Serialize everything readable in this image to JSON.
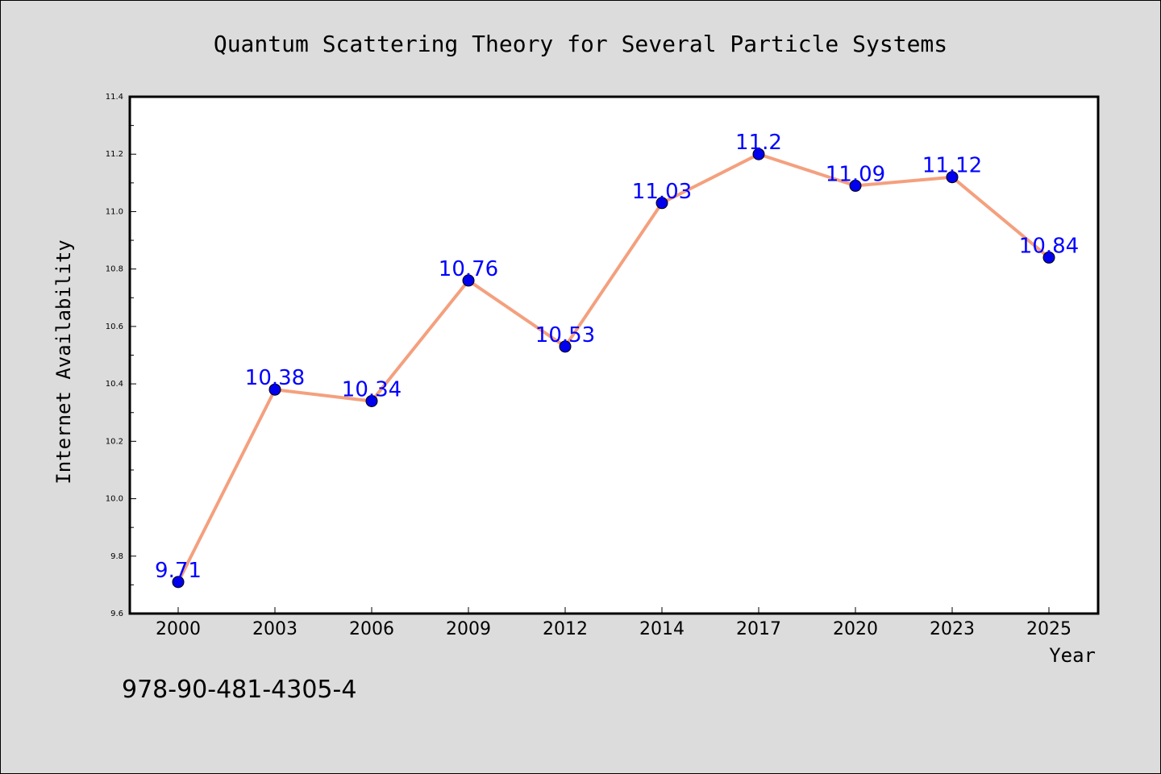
{
  "chart_data": {
    "type": "line",
    "title": "Quantum Scattering Theory for Several Particle Systems",
    "xlabel": "Year",
    "ylabel": "Internet Availability",
    "categories": [
      "2000",
      "2003",
      "2006",
      "2009",
      "2012",
      "2014",
      "2017",
      "2020",
      "2023",
      "2025"
    ],
    "values": [
      9.71,
      10.38,
      10.34,
      10.76,
      10.53,
      11.03,
      11.2,
      11.09,
      11.12,
      10.84
    ],
    "data_labels": [
      "9.71",
      "10.38",
      "10.34",
      "10.76",
      "10.53",
      "11.03",
      "11.2",
      "11.09",
      "11.12",
      "10.84"
    ],
    "ylim": [
      9.6,
      11.4
    ],
    "yticks": [
      "9.6",
      "9.8",
      "10.0",
      "10.2",
      "10.4",
      "10.6",
      "10.8",
      "11.0",
      "11.2",
      "11.4"
    ],
    "grid": false,
    "legend": "none",
    "colors": {
      "line": "#f4a07e",
      "marker": "#0000ee",
      "label": "#0000ff",
      "plot_bg": "#ffffff",
      "figure_bg": "#dcdcdc"
    }
  },
  "footer_text": "978-90-481-4305-4"
}
